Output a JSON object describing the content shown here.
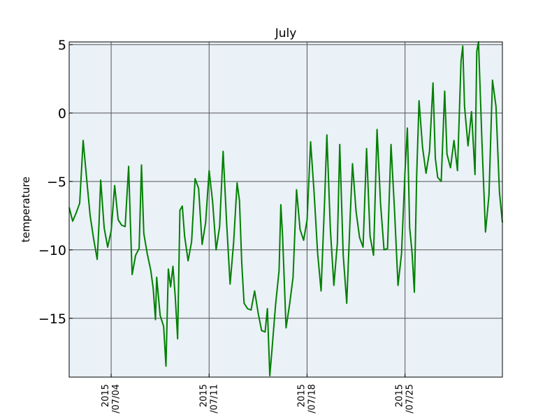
{
  "chart_data": {
    "type": "line",
    "title": "July",
    "xlabel": "",
    "ylabel": "temperature",
    "xlim": [
      "2015-07-01",
      "2015-07-31 23:00"
    ],
    "ylim": [
      -19.3,
      5.2
    ],
    "grid": true,
    "x_ticks": [
      {
        "date": "2015-07-04",
        "line1": "2015",
        "line2": "/07/04"
      },
      {
        "date": "2015-07-11",
        "line1": "2015",
        "line2": "/07/11"
      },
      {
        "date": "2015-07-18",
        "line1": "2015",
        "line2": "/07/18"
      },
      {
        "date": "2015-07-25",
        "line1": "2015",
        "line2": "/07/25"
      }
    ],
    "y_ticks": [
      {
        "value": 5,
        "label": "5"
      },
      {
        "value": 0,
        "label": "0"
      },
      {
        "value": -5,
        "label": "−5"
      },
      {
        "value": -10,
        "label": "−10"
      },
      {
        "value": -15,
        "label": "−15"
      }
    ],
    "series": [
      {
        "color": "#008000",
        "points": [
          [
            "2015-07-01 00:00",
            -6.9
          ],
          [
            "2015-07-01 06:00",
            -7.9
          ],
          [
            "2015-07-01 12:00",
            -7.3
          ],
          [
            "2015-07-01 18:00",
            -6.6
          ],
          [
            "2015-07-02 00:00",
            -2.0
          ],
          [
            "2015-07-02 06:00",
            -4.8
          ],
          [
            "2015-07-02 12:00",
            -7.5
          ],
          [
            "2015-07-02 18:00",
            -9.2
          ],
          [
            "2015-07-03 00:00",
            -10.7
          ],
          [
            "2015-07-03 03:00",
            -8.2
          ],
          [
            "2015-07-03 06:00",
            -4.9
          ],
          [
            "2015-07-03 12:00",
            -8.4
          ],
          [
            "2015-07-03 18:00",
            -9.8
          ],
          [
            "2015-07-04 00:00",
            -8.6
          ],
          [
            "2015-07-04 06:00",
            -5.3
          ],
          [
            "2015-07-04 12:00",
            -7.8
          ],
          [
            "2015-07-04 18:00",
            -8.2
          ],
          [
            "2015-07-05 00:00",
            -8.3
          ],
          [
            "2015-07-05 06:00",
            -3.9
          ],
          [
            "2015-07-05 09:00",
            -8.0
          ],
          [
            "2015-07-05 12:00",
            -11.8
          ],
          [
            "2015-07-05 18:00",
            -10.4
          ],
          [
            "2015-07-06 00:00",
            -9.9
          ],
          [
            "2015-07-06 04:00",
            -3.8
          ],
          [
            "2015-07-06 08:00",
            -8.8
          ],
          [
            "2015-07-06 14:00",
            -10.3
          ],
          [
            "2015-07-06 20:00",
            -11.5
          ],
          [
            "2015-07-07 00:00",
            -12.8
          ],
          [
            "2015-07-07 04:00",
            -15.1
          ],
          [
            "2015-07-07 06:00",
            -12.0
          ],
          [
            "2015-07-07 12:00",
            -14.8
          ],
          [
            "2015-07-07 18:00",
            -15.6
          ],
          [
            "2015-07-07 22:00",
            -18.5
          ],
          [
            "2015-07-08 02:00",
            -11.4
          ],
          [
            "2015-07-08 06:00",
            -12.7
          ],
          [
            "2015-07-08 10:00",
            -11.2
          ],
          [
            "2015-07-08 14:00",
            -13.5
          ],
          [
            "2015-07-08 18:00",
            -16.5
          ],
          [
            "2015-07-08 22:00",
            -7.1
          ],
          [
            "2015-07-09 02:00",
            -6.8
          ],
          [
            "2015-07-09 06:00",
            -9.0
          ],
          [
            "2015-07-09 12:00",
            -10.8
          ],
          [
            "2015-07-09 18:00",
            -9.4
          ],
          [
            "2015-07-10 00:00",
            -4.8
          ],
          [
            "2015-07-10 06:00",
            -5.5
          ],
          [
            "2015-07-10 12:00",
            -9.6
          ],
          [
            "2015-07-10 18:00",
            -8.0
          ],
          [
            "2015-07-11 00:00",
            -4.2
          ],
          [
            "2015-07-11 06:00",
            -6.5
          ],
          [
            "2015-07-11 12:00",
            -10.0
          ],
          [
            "2015-07-11 18:00",
            -8.3
          ],
          [
            "2015-07-12 00:00",
            -2.8
          ],
          [
            "2015-07-12 06:00",
            -8.0
          ],
          [
            "2015-07-12 12:00",
            -12.5
          ],
          [
            "2015-07-12 18:00",
            -9.5
          ],
          [
            "2015-07-13 00:00",
            -5.1
          ],
          [
            "2015-07-13 04:00",
            -6.4
          ],
          [
            "2015-07-13 08:00",
            -11.0
          ],
          [
            "2015-07-13 12:00",
            -13.9
          ],
          [
            "2015-07-13 18:00",
            -14.3
          ],
          [
            "2015-07-14 00:00",
            -14.4
          ],
          [
            "2015-07-14 06:00",
            -13.0
          ],
          [
            "2015-07-14 12:00",
            -14.6
          ],
          [
            "2015-07-14 18:00",
            -15.9
          ],
          [
            "2015-07-15 00:00",
            -16.0
          ],
          [
            "2015-07-15 04:00",
            -14.3
          ],
          [
            "2015-07-15 08:00",
            -19.2
          ],
          [
            "2015-07-15 12:00",
            -17.2
          ],
          [
            "2015-07-15 18:00",
            -14.0
          ],
          [
            "2015-07-16 00:00",
            -11.5
          ],
          [
            "2015-07-16 03:00",
            -6.7
          ],
          [
            "2015-07-16 06:00",
            -9.0
          ],
          [
            "2015-07-16 12:00",
            -15.7
          ],
          [
            "2015-07-16 18:00",
            -14.0
          ],
          [
            "2015-07-17 00:00",
            -12.0
          ],
          [
            "2015-07-17 06:00",
            -5.6
          ],
          [
            "2015-07-17 12:00",
            -8.5
          ],
          [
            "2015-07-17 18:00",
            -9.3
          ],
          [
            "2015-07-18 00:00",
            -7.8
          ],
          [
            "2015-07-18 06:00",
            -2.1
          ],
          [
            "2015-07-18 12:00",
            -5.8
          ],
          [
            "2015-07-18 18:00",
            -10.2
          ],
          [
            "2015-07-19 00:00",
            -13.0
          ],
          [
            "2015-07-19 06:00",
            -6.5
          ],
          [
            "2015-07-19 10:00",
            -1.6
          ],
          [
            "2015-07-19 16:00",
            -8.5
          ],
          [
            "2015-07-19 22:00",
            -12.6
          ],
          [
            "2015-07-20 04:00",
            -9.5
          ],
          [
            "2015-07-20 08:00",
            -2.3
          ],
          [
            "2015-07-20 14:00",
            -10.4
          ],
          [
            "2015-07-20 20:00",
            -13.9
          ],
          [
            "2015-07-21 02:00",
            -7.5
          ],
          [
            "2015-07-21 06:00",
            -3.7
          ],
          [
            "2015-07-21 12:00",
            -7.2
          ],
          [
            "2015-07-21 18:00",
            -9.1
          ],
          [
            "2015-07-22 00:00",
            -9.8
          ],
          [
            "2015-07-22 06:00",
            -2.6
          ],
          [
            "2015-07-22 12:00",
            -9.0
          ],
          [
            "2015-07-22 18:00",
            -10.4
          ],
          [
            "2015-07-23 00:00",
            -1.2
          ],
          [
            "2015-07-23 06:00",
            -6.6
          ],
          [
            "2015-07-23 12:00",
            -10.0
          ],
          [
            "2015-07-23 18:00",
            -9.9
          ],
          [
            "2015-07-24 00:00",
            -2.3
          ],
          [
            "2015-07-24 06:00",
            -7.1
          ],
          [
            "2015-07-24 12:00",
            -12.6
          ],
          [
            "2015-07-24 18:00",
            -10.3
          ],
          [
            "2015-07-25 00:00",
            -4.3
          ],
          [
            "2015-07-25 04:00",
            -1.1
          ],
          [
            "2015-07-25 08:00",
            -8.4
          ],
          [
            "2015-07-25 12:00",
            -10.2
          ],
          [
            "2015-07-25 16:00",
            -13.1
          ],
          [
            "2015-07-25 20:00",
            -4.6
          ],
          [
            "2015-07-26 00:00",
            0.9
          ],
          [
            "2015-07-26 06:00",
            -2.5
          ],
          [
            "2015-07-26 12:00",
            -4.4
          ],
          [
            "2015-07-26 18:00",
            -2.8
          ],
          [
            "2015-07-27 00:00",
            2.2
          ],
          [
            "2015-07-27 04:00",
            -3.3
          ],
          [
            "2015-07-27 08:00",
            -4.7
          ],
          [
            "2015-07-27 14:00",
            -5.0
          ],
          [
            "2015-07-27 20:00",
            1.6
          ],
          [
            "2015-07-28 00:00",
            -3.0
          ],
          [
            "2015-07-28 06:00",
            -4.0
          ],
          [
            "2015-07-28 12:00",
            -2.0
          ],
          [
            "2015-07-28 18:00",
            -4.2
          ],
          [
            "2015-07-29 00:00",
            3.8
          ],
          [
            "2015-07-29 03:00",
            4.9
          ],
          [
            "2015-07-29 06:00",
            0.5
          ],
          [
            "2015-07-29 12:00",
            -2.4
          ],
          [
            "2015-07-29 18:00",
            0.1
          ],
          [
            "2015-07-30 00:00",
            -4.5
          ],
          [
            "2015-07-30 03:00",
            4.5
          ],
          [
            "2015-07-30 06:00",
            5.2
          ],
          [
            "2015-07-30 12:00",
            -2.2
          ],
          [
            "2015-07-30 18:00",
            -8.7
          ],
          [
            "2015-07-31 00:00",
            -6.0
          ],
          [
            "2015-07-31 06:00",
            2.4
          ],
          [
            "2015-07-31 12:00",
            0.5
          ],
          [
            "2015-07-31 18:00",
            -5.8
          ],
          [
            "2015-07-31 23:00",
            -8.0
          ]
        ]
      }
    ],
    "colors": {
      "plot_background": "#eaf1f7",
      "grid": "#555555",
      "line": "#008000"
    }
  }
}
